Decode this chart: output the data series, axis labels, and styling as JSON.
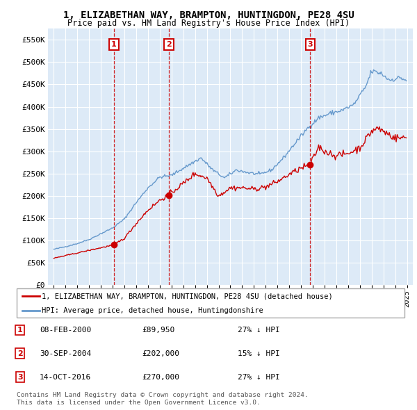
{
  "title": "1, ELIZABETHAN WAY, BRAMPTON, HUNTINGDON, PE28 4SU",
  "subtitle": "Price paid vs. HM Land Registry's House Price Index (HPI)",
  "ylabel_ticks": [
    "£0",
    "£50K",
    "£100K",
    "£150K",
    "£200K",
    "£250K",
    "£300K",
    "£350K",
    "£400K",
    "£450K",
    "£500K",
    "£550K"
  ],
  "ytick_values": [
    0,
    50000,
    100000,
    150000,
    200000,
    250000,
    300000,
    350000,
    400000,
    450000,
    500000,
    550000
  ],
  "ylim": [
    0,
    575000
  ],
  "xlim_start": 1994.5,
  "xlim_end": 2025.5,
  "sale_points": [
    {
      "num": 1,
      "year": 2000.1,
      "price": 89950,
      "label": "08-FEB-2000",
      "price_str": "£89,950",
      "pct": "27% ↓ HPI"
    },
    {
      "num": 2,
      "year": 2004.75,
      "price": 202000,
      "label": "30-SEP-2004",
      "price_str": "£202,000",
      "pct": "15% ↓ HPI"
    },
    {
      "num": 3,
      "year": 2016.79,
      "price": 270000,
      "label": "14-OCT-2016",
      "price_str": "£270,000",
      "pct": "27% ↓ HPI"
    }
  ],
  "legend_property": "1, ELIZABETHAN WAY, BRAMPTON, HUNTINGDON, PE28 4SU (detached house)",
  "legend_hpi": "HPI: Average price, detached house, Huntingdonshire",
  "footer1": "Contains HM Land Registry data © Crown copyright and database right 2024.",
  "footer2": "This data is licensed under the Open Government Licence v3.0.",
  "property_color": "#cc0000",
  "hpi_color": "#6699cc",
  "vline_color": "#cc0000",
  "bg_color": "#ddeaf7",
  "grid_color": "#cccccc",
  "box_color": "#cc0000",
  "shade_color": "#ddeaf7",
  "hpi_anchors": {
    "1995.0": 80000,
    "1996.0": 86000,
    "1997.0": 93000,
    "1998.0": 102000,
    "1999.0": 115000,
    "2000.0": 128000,
    "2001.0": 148000,
    "2002.0": 185000,
    "2003.0": 218000,
    "2004.0": 242000,
    "2005.0": 246000,
    "2006.0": 262000,
    "2007.5": 285000,
    "2008.5": 258000,
    "2009.5": 240000,
    "2010.5": 258000,
    "2011.5": 252000,
    "2012.5": 248000,
    "2013.5": 258000,
    "2014.5": 285000,
    "2015.5": 318000,
    "2016.5": 350000,
    "2017.5": 375000,
    "2018.5": 385000,
    "2019.5": 392000,
    "2020.5": 405000,
    "2021.5": 445000,
    "2022.0": 480000,
    "2022.8": 475000,
    "2023.5": 460000,
    "2024.5": 465000,
    "2024.95": 458000
  },
  "prop_anchors_pre1": {
    "1995.0": 60000,
    "2000.1": 89950
  },
  "prop_anchors_1_2": {
    "2000.1": 89950,
    "2001.0": 105000,
    "2002.0": 138000,
    "2003.0": 168000,
    "2004.0": 190000,
    "2004.75": 202000
  },
  "prop_anchors_2_3": {
    "2004.75": 202000,
    "2006.0": 228000,
    "2007.0": 250000,
    "2008.0": 240000,
    "2009.0": 200000,
    "2010.0": 218000,
    "2011.0": 218000,
    "2012.0": 215000,
    "2013.0": 220000,
    "2014.0": 232000,
    "2015.0": 248000,
    "2016.0": 262000,
    "2016.79": 270000
  },
  "prop_anchors_post3": {
    "2016.79": 270000,
    "2017.5": 310000,
    "2018.0": 300000,
    "2019.0": 290000,
    "2020.0": 295000,
    "2021.0": 308000,
    "2022.0": 345000,
    "2022.5": 352000,
    "2023.0": 345000,
    "2024.0": 330000,
    "2024.95": 330000
  }
}
